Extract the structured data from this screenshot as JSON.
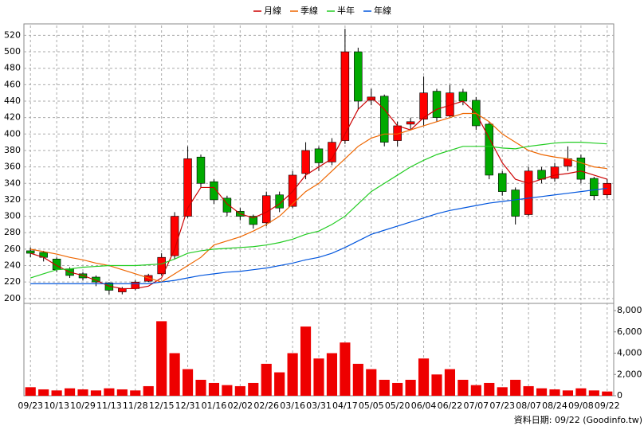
{
  "chart_data": {
    "type": "candlestick",
    "categories": [
      "09/23",
      null,
      "10/13",
      null,
      "10/29",
      null,
      "11/13",
      null,
      "11/28",
      null,
      "12/15",
      null,
      "12/31",
      null,
      "01/16",
      null,
      "02/02",
      null,
      "02/26",
      null,
      "03/16",
      null,
      "03/31",
      null,
      "04/17",
      null,
      "05/05",
      null,
      "05/20",
      null,
      "06/04",
      null,
      "06/22",
      null,
      "07/07",
      null,
      "07/23",
      null,
      "08/07",
      null,
      "08/24",
      null,
      "09/08",
      null,
      "09/22"
    ],
    "open": [
      258,
      256,
      248,
      236,
      230,
      226,
      219,
      208,
      212,
      221,
      230,
      252,
      300,
      372,
      342,
      322,
      306,
      300,
      292,
      326,
      312,
      352,
      382,
      366,
      392,
      500,
      441,
      446,
      392,
      412,
      418,
      452,
      422,
      451,
      441,
      412,
      352,
      332,
      302,
      356,
      346,
      361,
      371,
      346,
      326
    ],
    "high": [
      262,
      258,
      250,
      238,
      232,
      228,
      220,
      214,
      222,
      230,
      255,
      305,
      385,
      375,
      345,
      325,
      310,
      302,
      330,
      330,
      355,
      390,
      385,
      395,
      528,
      505,
      455,
      448,
      415,
      420,
      470,
      455,
      460,
      455,
      445,
      415,
      355,
      335,
      360,
      360,
      365,
      385,
      375,
      348,
      345
    ],
    "low": [
      250,
      245,
      232,
      225,
      222,
      215,
      205,
      205,
      210,
      220,
      228,
      248,
      298,
      335,
      315,
      300,
      295,
      285,
      288,
      305,
      310,
      345,
      355,
      362,
      388,
      430,
      435,
      385,
      385,
      405,
      410,
      415,
      420,
      435,
      405,
      345,
      325,
      290,
      300,
      340,
      342,
      355,
      340,
      320,
      322
    ],
    "close": [
      255,
      250,
      235,
      228,
      225,
      220,
      210,
      212,
      220,
      228,
      250,
      300,
      370,
      340,
      320,
      305,
      300,
      290,
      325,
      310,
      350,
      380,
      365,
      390,
      500,
      440,
      445,
      390,
      410,
      415,
      450,
      420,
      450,
      440,
      410,
      350,
      330,
      300,
      355,
      345,
      360,
      370,
      345,
      325,
      340
    ],
    "up_color": "#ff0000",
    "down_color": "#00aa00",
    "series": [
      {
        "name": "月線",
        "color": "#cc0000",
        "values": [
          255,
          250,
          240,
          232,
          228,
          222,
          215,
          212,
          212,
          215,
          225,
          260,
          310,
          335,
          335,
          315,
          303,
          298,
          305,
          315,
          330,
          350,
          360,
          370,
          400,
          430,
          445,
          430,
          410,
          405,
          420,
          430,
          435,
          440,
          425,
          395,
          365,
          345,
          340,
          345,
          350,
          352,
          355,
          350,
          345
        ]
      },
      {
        "name": "季線",
        "color": "#ee6600",
        "values": [
          260,
          257,
          254,
          250,
          247,
          243,
          240,
          235,
          230,
          225,
          220,
          230,
          240,
          250,
          265,
          270,
          275,
          282,
          290,
          300,
          315,
          330,
          340,
          355,
          370,
          385,
          395,
          400,
          400,
          405,
          410,
          415,
          420,
          425,
          425,
          415,
          400,
          390,
          380,
          375,
          372,
          370,
          365,
          360,
          358
        ]
      },
      {
        "name": "半年",
        "color": "#22cc22",
        "values": [
          225,
          230,
          235,
          236,
          238,
          239,
          240,
          240,
          240,
          241,
          242,
          248,
          255,
          258,
          260,
          261,
          262,
          263,
          265,
          268,
          272,
          278,
          282,
          290,
          300,
          315,
          330,
          340,
          350,
          360,
          368,
          375,
          380,
          385,
          385,
          385,
          383,
          382,
          385,
          387,
          389,
          390,
          390,
          389,
          388
        ]
      },
      {
        "name": "年線",
        "color": "#0055dd",
        "values": [
          218,
          218,
          218,
          218,
          218,
          218,
          218,
          218,
          218,
          218,
          220,
          222,
          225,
          228,
          230,
          232,
          233,
          235,
          237,
          240,
          243,
          247,
          250,
          255,
          262,
          270,
          278,
          283,
          288,
          293,
          298,
          303,
          307,
          310,
          313,
          316,
          318,
          320,
          322,
          324,
          326,
          328,
          330,
          332,
          334
        ]
      }
    ],
    "ylim": [
      195,
      532
    ],
    "yticks": [
      200,
      220,
      240,
      260,
      280,
      300,
      320,
      340,
      360,
      380,
      400,
      420,
      440,
      460,
      480,
      500,
      520
    ],
    "grid": true,
    "volume": {
      "color": "#ee0000",
      "values": [
        800,
        600,
        500,
        700,
        600,
        500,
        700,
        600,
        500,
        900,
        7000,
        4000,
        2500,
        1500,
        1200,
        1000,
        900,
        1200,
        3000,
        2200,
        4000,
        6500,
        3500,
        4000,
        5000,
        3000,
        2500,
        1500,
        1200,
        1500,
        3500,
        2000,
        2500,
        1500,
        1000,
        1200,
        800,
        1500,
        900,
        700,
        600,
        500,
        700,
        500,
        400
      ],
      "ylim": [
        0,
        8600
      ],
      "yticks": [
        0,
        {
          "value": 2000,
          "label": "2,000"
        },
        {
          "value": 4000,
          "label": "4,000"
        },
        {
          "value": 6000,
          "label": "6,000"
        },
        {
          "value": 8000,
          "label": "8,000"
        }
      ]
    },
    "footer": "資料日期: 09/22 (Goodinfo.tw)"
  }
}
